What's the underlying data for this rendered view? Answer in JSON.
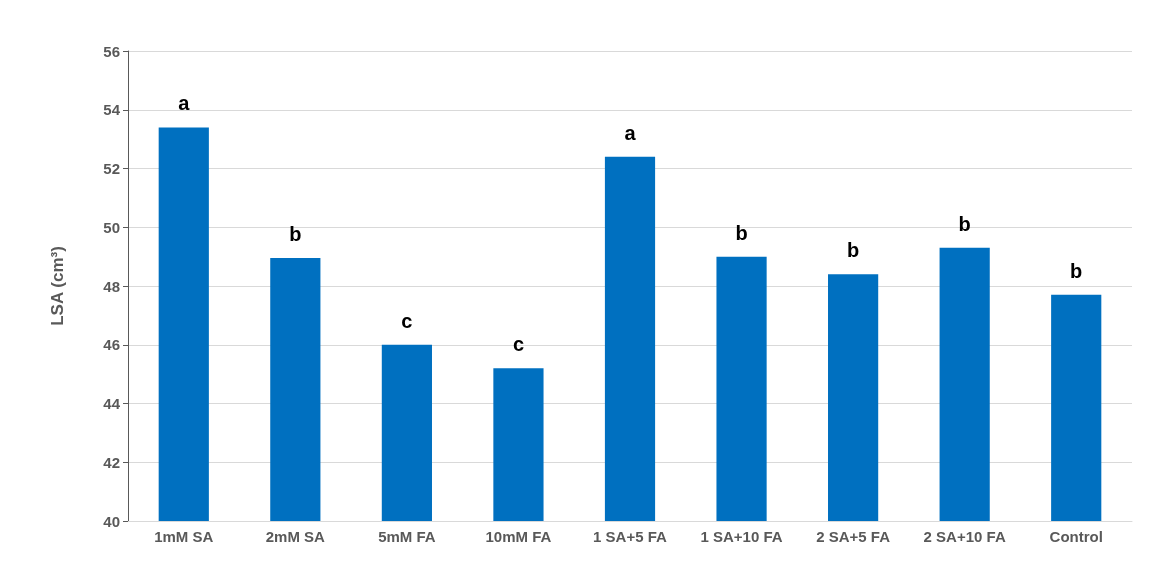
{
  "chart_data": {
    "type": "bar",
    "ylabel": "LSA (cm³)",
    "categories": [
      "1mM SA",
      "2mM SA",
      "5mM FA",
      "10mM FA",
      "1 SA+5 FA",
      "1 SA+10 FA",
      "2 SA+5 FA",
      "2 SA+10 FA",
      "Control"
    ],
    "values": [
      53.4,
      48.95,
      46.0,
      45.2,
      52.4,
      49.0,
      48.4,
      49.3,
      47.7
    ],
    "color": "#0070c0",
    "ylim": [
      40,
      56
    ],
    "yticks": [
      40,
      42,
      44,
      46,
      48,
      50,
      52,
      54,
      56
    ],
    "grid": "y",
    "annotations": [
      {
        "text": "a",
        "x": "1mM SA",
        "y": 53.4
      },
      {
        "text": "b",
        "x": "2mM SA",
        "y": 48.95
      },
      {
        "text": "c",
        "x": "5mM FA",
        "y": 46.0
      },
      {
        "text": "c",
        "x": "10mM FA",
        "y": 45.2
      },
      {
        "text": "a",
        "x": "1 SA+5 FA",
        "y": 52.4
      },
      {
        "text": "b",
        "x": "1 SA+10 FA",
        "y": 49.0
      },
      {
        "text": "b",
        "x": "2 SA+5 FA",
        "y": 48.4
      },
      {
        "text": "b",
        "x": "2 SA+10 FA",
        "y": 49.3
      },
      {
        "text": "b",
        "x": "Control",
        "y": 47.7
      }
    ]
  }
}
